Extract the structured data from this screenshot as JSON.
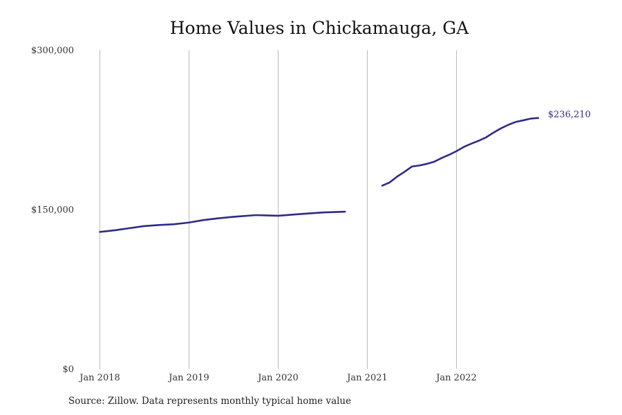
{
  "chart_data": {
    "type": "line",
    "title": "Home Values in Chickamauga, GA",
    "xlabel": "",
    "ylabel": "",
    "source": "Source: Zillow. Data represents monthly typical home value",
    "x_ticks": [
      "Jan 2018",
      "Jan 2019",
      "Jan 2020",
      "Jan 2021",
      "Jan 2022"
    ],
    "y_ticks": [
      "$0",
      "$150,000",
      "$300,000"
    ],
    "ylim": [
      0,
      300000
    ],
    "xlim": [
      "2018-01",
      "2023-01"
    ],
    "grid": "vertical",
    "series_color": "#2e2a86",
    "end_label": "$236,210",
    "series": [
      {
        "segments": [
          [
            {
              "x": "2018-01",
              "y": 129000
            },
            {
              "x": "2018-03",
              "y": 130500
            },
            {
              "x": "2018-05",
              "y": 132500
            },
            {
              "x": "2018-07",
              "y": 134500
            },
            {
              "x": "2018-09",
              "y": 135500
            },
            {
              "x": "2018-11",
              "y": 136200
            },
            {
              "x": "2019-01",
              "y": 137800
            },
            {
              "x": "2019-03",
              "y": 140200
            },
            {
              "x": "2019-05",
              "y": 141800
            },
            {
              "x": "2019-07",
              "y": 143200
            },
            {
              "x": "2019-10",
              "y": 144800
            },
            {
              "x": "2020-01",
              "y": 144200
            },
            {
              "x": "2020-04",
              "y": 145800
            },
            {
              "x": "2020-07",
              "y": 147300
            },
            {
              "x": "2020-10",
              "y": 148000
            }
          ],
          [
            {
              "x": "2021-03",
              "y": 172500
            },
            {
              "x": "2021-04",
              "y": 175500
            },
            {
              "x": "2021-05",
              "y": 181000
            },
            {
              "x": "2021-06",
              "y": 185500
            },
            {
              "x": "2021-07",
              "y": 190500
            },
            {
              "x": "2021-08",
              "y": 191500
            },
            {
              "x": "2021-09",
              "y": 193000
            },
            {
              "x": "2021-10",
              "y": 195000
            },
            {
              "x": "2021-11",
              "y": 198500
            },
            {
              "x": "2021-12",
              "y": 201500
            },
            {
              "x": "2022-01",
              "y": 205000
            },
            {
              "x": "2022-02",
              "y": 209000
            },
            {
              "x": "2022-03",
              "y": 212000
            },
            {
              "x": "2022-04",
              "y": 214800
            },
            {
              "x": "2022-05",
              "y": 218000
            },
            {
              "x": "2022-06",
              "y": 222500
            },
            {
              "x": "2022-07",
              "y": 226500
            },
            {
              "x": "2022-08",
              "y": 229800
            },
            {
              "x": "2022-09",
              "y": 232500
            },
            {
              "x": "2022-10",
              "y": 234000
            },
            {
              "x": "2022-11",
              "y": 235600
            },
            {
              "x": "2022-12",
              "y": 236210
            }
          ]
        ]
      }
    ]
  }
}
